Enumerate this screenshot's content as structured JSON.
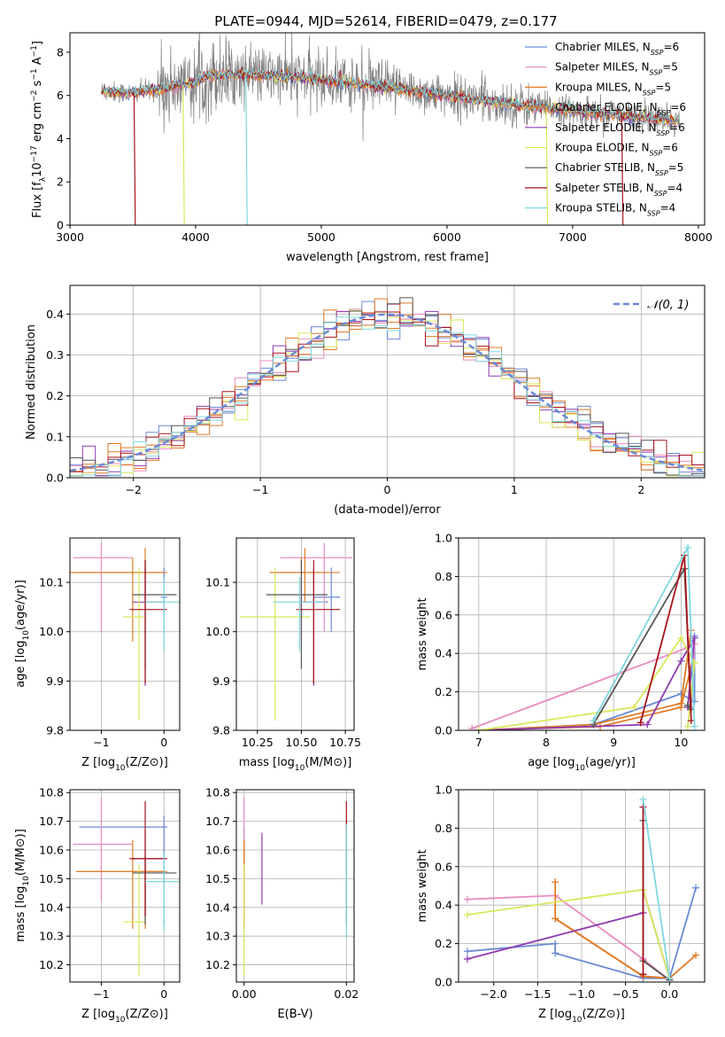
{
  "figure_title": "PLATE=0944, MJD=52614, FIBERID=0479, z=0.177",
  "colors": {
    "Chabrier MILES": "#6a8ad6",
    "Salpeter MILES": "#e88bbf",
    "Kroupa MILES": "#e07a25",
    "Chabrier ELODIE": "#e07a25",
    "Salpeter ELODIE": "#8e3bb0",
    "Kroupa ELODIE": "#d9e85a",
    "Chabrier STELIB": "#555555",
    "Salpeter STELIB": "#a8141c",
    "Kroupa STELIB": "#7fd8e0",
    "data": "#808080"
  },
  "chart_data": [
    {
      "id": "spectrum",
      "type": "line",
      "xlabel": "wavelength [Angstrom, rest frame]",
      "ylabel": "Flux [f_λ 10^-17 erg cm^-2 s^-1 A^-1]",
      "xlim": [
        3000,
        8050
      ],
      "ylim": [
        0,
        8.9
      ],
      "xticks": [
        3000,
        4000,
        5000,
        6000,
        7000,
        8000
      ],
      "yticks": [
        0,
        2,
        4,
        6,
        8
      ],
      "grid": false,
      "legend": "upper-right",
      "data_range": [
        3250,
        7850
      ],
      "profile": [
        [
          3250,
          6.2
        ],
        [
          3500,
          6.1
        ],
        [
          3700,
          6.3
        ],
        [
          3950,
          6.5
        ],
        [
          4100,
          6.9
        ],
        [
          4300,
          7.0
        ],
        [
          4600,
          6.9
        ],
        [
          4900,
          6.8
        ],
        [
          5200,
          6.6
        ],
        [
          5600,
          6.3
        ],
        [
          6000,
          6.0
        ],
        [
          6500,
          5.6
        ],
        [
          7000,
          5.3
        ],
        [
          7500,
          5.0
        ],
        [
          7850,
          4.8
        ]
      ],
      "legend_entries": [
        {
          "name": "Chabrier MILES",
          "label": "Chabrier MILES, N",
          "n": "=6"
        },
        {
          "name": "Salpeter MILES",
          "label": "Salpeter MILES, N",
          "n": "=5"
        },
        {
          "name": "Kroupa MILES",
          "label": "Kroupa MILES, N",
          "n": "=5"
        },
        {
          "name": "Chabrier ELODIE",
          "label": "Chabrier ELODIE, N",
          "n": "=6"
        },
        {
          "name": "Salpeter ELODIE",
          "label": "Salpeter ELODIE, N",
          "n": "=6"
        },
        {
          "name": "Kroupa ELODIE",
          "label": "Kroupa ELODIE, N",
          "n": "=6"
        },
        {
          "name": "Chabrier STELIB",
          "label": "Chabrier STELIB, N",
          "n": "=5"
        },
        {
          "name": "Salpeter STELIB",
          "label": "Salpeter STELIB, N",
          "n": "=4"
        },
        {
          "name": "Kroupa STELIB",
          "label": "Kroupa STELIB, N",
          "n": "=4"
        }
      ],
      "legend_subscript": "SSP",
      "drops": [
        {
          "model": "Salpeter STELIB",
          "x": 3520
        },
        {
          "model": "Kroupa ELODIE",
          "x": 3910
        },
        {
          "model": "Kroupa STELIB",
          "x": 4410
        },
        {
          "model": "Kroupa ELODIE",
          "x": 6800
        },
        {
          "model": "Salpeter STELIB",
          "x": 7400
        }
      ]
    },
    {
      "id": "residuals",
      "type": "step",
      "xlabel": "(data-model)/error",
      "ylabel": "Normed distribution",
      "xlim": [
        -2.5,
        2.5
      ],
      "ylim": [
        0,
        0.47
      ],
      "xticks": [
        -2,
        -1,
        0,
        1,
        2
      ],
      "yticks": [
        0.0,
        0.1,
        0.2,
        0.3,
        0.4
      ],
      "grid": true,
      "legend": "upper-right",
      "legend_label": "𝒩(0, 1)",
      "bin_width": 0.1
    },
    {
      "id": "age-vs-Z",
      "type": "errorbar",
      "xlabel": "Z [log10(Z/Z⊙)]",
      "ylabel": "age  [log10(age/yr)]",
      "xlim": [
        -1.5,
        0.25
      ],
      "ylim": [
        9.8,
        10.19
      ],
      "xticks": [
        -1,
        0
      ],
      "yticks": [
        9.8,
        9.9,
        10.0,
        10.1
      ],
      "grid": true,
      "points": [
        {
          "model": "Chabrier MILES",
          "x": 0.0,
          "y": 10.07,
          "xerr": [
            0.05,
            0.05
          ],
          "yerr": [
            0.07,
            0.06
          ]
        },
        {
          "model": "Salpeter MILES",
          "x": -1.0,
          "y": 10.15,
          "xerr": [
            0.45,
            0.5
          ],
          "yerr": [
            0.15,
            0.03
          ]
        },
        {
          "model": "Kroupa MILES",
          "x": -0.3,
          "y": 10.12,
          "xerr": [
            1.2,
            0.35
          ],
          "yerr": [
            0.06,
            0.05
          ]
        },
        {
          "model": "Chabrier ELODIE",
          "x": -0.5,
          "y": 10.12,
          "xerr": [
            0.9,
            0.5
          ],
          "yerr": [
            0.14,
            0.03
          ]
        },
        {
          "model": "Salpeter ELODIE",
          "x": -0.3,
          "y": 10.06,
          "xerr": [
            0.2,
            0.3
          ],
          "yerr": [
            0.17,
            0.07
          ]
        },
        {
          "model": "Kroupa ELODIE",
          "x": -0.4,
          "y": 10.03,
          "xerr": [
            0.25,
            0.1
          ],
          "yerr": [
            0.21,
            0.1
          ]
        },
        {
          "model": "Chabrier STELIB",
          "x": -0.3,
          "y": 10.075,
          "xerr": [
            0.2,
            0.5
          ],
          "yerr": [
            0.15,
            0.07
          ]
        },
        {
          "model": "Salpeter STELIB",
          "x": -0.3,
          "y": 10.045,
          "xerr": [
            0.25,
            0.35
          ],
          "yerr": [
            0.15,
            0.1
          ]
        },
        {
          "model": "Kroupa STELIB",
          "x": 0.0,
          "y": 10.06,
          "xerr": [
            0.3,
            0.25
          ],
          "yerr": [
            0.1,
            0.05
          ]
        }
      ]
    },
    {
      "id": "age-vs-mass",
      "type": "errorbar",
      "xlabel": "mass [log10(M/M⊙)]",
      "ylabel": "",
      "xlim": [
        10.13,
        10.8
      ],
      "ylim": [
        9.8,
        10.19
      ],
      "xticks": [
        10.25,
        10.5,
        10.75
      ],
      "yticks": [
        9.8,
        9.9,
        10.0,
        10.1
      ],
      "grid": true,
      "points": [
        {
          "model": "Chabrier MILES",
          "x": 10.67,
          "y": 10.07,
          "xerr": [
            0.1,
            0.05
          ],
          "yerr": [
            0.07,
            0.06
          ]
        },
        {
          "model": "Salpeter MILES",
          "x": 10.63,
          "y": 10.15,
          "xerr": [
            0.25,
            0.16
          ],
          "yerr": [
            0.15,
            0.03
          ]
        },
        {
          "model": "Kroupa MILES",
          "x": 10.52,
          "y": 10.12,
          "xerr": [
            0.2,
            0.2
          ],
          "yerr": [
            0.06,
            0.05
          ]
        },
        {
          "model": "Chabrier ELODIE",
          "x": 10.5,
          "y": 10.12,
          "xerr": [
            0.18,
            0.1
          ],
          "yerr": [
            0.14,
            0.03
          ]
        },
        {
          "model": "Salpeter ELODIE",
          "x": 10.57,
          "y": 10.06,
          "xerr": [
            0.08,
            0.08
          ],
          "yerr": [
            0.17,
            0.07
          ]
        },
        {
          "model": "Kroupa ELODIE",
          "x": 10.35,
          "y": 10.03,
          "xerr": [
            0.2,
            0.2
          ],
          "yerr": [
            0.21,
            0.1
          ]
        },
        {
          "model": "Chabrier STELIB",
          "x": 10.5,
          "y": 10.075,
          "xerr": [
            0.2,
            0.15
          ],
          "yerr": [
            0.15,
            0.07
          ]
        },
        {
          "model": "Salpeter STELIB",
          "x": 10.57,
          "y": 10.045,
          "xerr": [
            0.1,
            0.15
          ],
          "yerr": [
            0.15,
            0.1
          ]
        },
        {
          "model": "Kroupa STELIB",
          "x": 10.49,
          "y": 10.06,
          "xerr": [
            0.15,
            0.15
          ],
          "yerr": [
            0.1,
            0.05
          ]
        }
      ]
    },
    {
      "id": "massweight-vs-age",
      "type": "line",
      "xlabel": "age  [log10(age/yr)]",
      "ylabel": "mass weight",
      "xlim": [
        6.7,
        10.35
      ],
      "ylim": [
        0,
        1
      ],
      "xticks": [
        7,
        8,
        9,
        10
      ],
      "yticks": [
        0.0,
        0.2,
        0.4,
        0.6,
        0.8,
        1.0
      ],
      "grid": true,
      "series": [
        {
          "model": "Chabrier MILES",
          "x": [
            7.0,
            8.7,
            10.0,
            10.2,
            10.2,
            10.1
          ],
          "y": [
            0.0,
            0.03,
            0.19,
            0.15,
            0.49,
            0.13
          ]
        },
        {
          "model": "Salpeter MILES",
          "x": [
            6.9,
            10.1,
            10.2,
            10.15
          ],
          "y": [
            0.01,
            0.43,
            0.45,
            0.12
          ]
        },
        {
          "model": "Kroupa MILES",
          "x": [
            7.0,
            8.7,
            10.0,
            10.15
          ],
          "y": [
            0.0,
            0.03,
            0.14,
            0.52
          ]
        },
        {
          "model": "Chabrier ELODIE",
          "x": [
            7.0,
            8.8,
            10.0,
            10.15
          ],
          "y": [
            0.0,
            0.02,
            0.12,
            0.33
          ]
        },
        {
          "model": "Salpeter ELODIE",
          "x": [
            7.0,
            9.5,
            10.0,
            10.2,
            10.1
          ],
          "y": [
            0.0,
            0.03,
            0.36,
            0.48,
            0.12
          ]
        },
        {
          "model": "Kroupa ELODIE",
          "x": [
            7.0,
            9.3,
            10.0,
            10.2,
            10.1
          ],
          "y": [
            0.0,
            0.12,
            0.48,
            0.35,
            0.02
          ]
        },
        {
          "model": "Chabrier STELIB",
          "x": [
            8.7,
            10.05,
            10.15,
            10.1
          ],
          "y": [
            0.03,
            0.84,
            0.11,
            0.13
          ]
        },
        {
          "model": "Salpeter STELIB",
          "x": [
            9.4,
            10.05,
            10.15
          ],
          "y": [
            0.04,
            0.91,
            0.05
          ]
        },
        {
          "model": "Kroupa STELIB",
          "x": [
            8.7,
            10.1,
            10.2
          ],
          "y": [
            0.05,
            0.95,
            0.02
          ]
        }
      ]
    },
    {
      "id": "mass-vs-Z",
      "type": "errorbar",
      "xlabel": "Z [log10(Z/Z⊙)]",
      "ylabel": "mass [log10(M/M⊙)]",
      "xlim": [
        -1.5,
        0.25
      ],
      "ylim": [
        10.14,
        10.81
      ],
      "xticks": [
        -1,
        0
      ],
      "yticks": [
        10.2,
        10.3,
        10.4,
        10.5,
        10.6,
        10.7,
        10.8
      ],
      "grid": true,
      "points": [
        {
          "model": "Chabrier MILES",
          "x": 0.0,
          "y": 10.68,
          "xerr": [
            1.35,
            0.05
          ],
          "yerr": [
            0.34,
            0.04
          ]
        },
        {
          "model": "Salpeter MILES",
          "x": -1.0,
          "y": 10.62,
          "xerr": [
            0.45,
            0.5
          ],
          "yerr": [
            0.2,
            0.16
          ]
        },
        {
          "model": "Kroupa MILES",
          "x": -0.3,
          "y": 10.525,
          "xerr": [
            1.1,
            0.35
          ],
          "yerr": [
            0.2,
            0.05
          ]
        },
        {
          "model": "Chabrier ELODIE",
          "x": -0.5,
          "y": 10.525,
          "xerr": [
            0.9,
            0.5
          ],
          "yerr": [
            0.2,
            0.11
          ]
        },
        {
          "model": "Salpeter ELODIE",
          "x": -0.3,
          "y": 10.57,
          "xerr": [
            0.2,
            0.3
          ],
          "yerr": [
            0.2,
            0.1
          ]
        },
        {
          "model": "Kroupa ELODIE",
          "x": -0.4,
          "y": 10.35,
          "xerr": [
            0.25,
            0.1
          ],
          "yerr": [
            0.19,
            0.2
          ]
        },
        {
          "model": "Chabrier STELIB",
          "x": -0.3,
          "y": 10.52,
          "xerr": [
            0.2,
            0.5
          ],
          "yerr": [
            0.18,
            0.06
          ]
        },
        {
          "model": "Salpeter STELIB",
          "x": -0.3,
          "y": 10.57,
          "xerr": [
            0.25,
            0.35
          ],
          "yerr": [
            0.2,
            0.2
          ]
        },
        {
          "model": "Kroupa STELIB",
          "x": 0.0,
          "y": 10.49,
          "xerr": [
            0.3,
            0.25
          ],
          "yerr": [
            0.17,
            0.1
          ]
        }
      ]
    },
    {
      "id": "mass-vs-EBV",
      "type": "errorbar",
      "xlabel": "E(B-V)",
      "ylabel": "",
      "xlim": [
        -0.0015,
        0.0215
      ],
      "ylim": [
        10.14,
        10.81
      ],
      "xticks": [
        0.0,
        0.02
      ],
      "xtick_labels": [
        "0.00",
        "0.02"
      ],
      "yticks": [
        10.2,
        10.3,
        10.4,
        10.5,
        10.6,
        10.7,
        10.8
      ],
      "grid": true,
      "points": [
        {
          "model": "Chabrier MILES",
          "x": 0.0,
          "y": 10.48,
          "yerr": [
            0.12,
            0.2
          ]
        },
        {
          "model": "Salpeter MILES",
          "x": 0.0,
          "y": 10.62,
          "yerr": [
            0.2,
            0.16
          ]
        },
        {
          "model": "Kroupa MILES",
          "x": 0.0,
          "y": 10.525,
          "yerr": [
            0.2,
            0.11
          ]
        },
        {
          "model": "Chabrier ELODIE",
          "x": 0.0,
          "y": 10.525,
          "yerr": [
            0.2,
            0.11
          ]
        },
        {
          "model": "Salpeter ELODIE",
          "x": 0.0035,
          "y": 10.53,
          "yerr": [
            0.12,
            0.13
          ]
        },
        {
          "model": "Kroupa ELODIE",
          "x": 0.0,
          "y": 10.35,
          "yerr": [
            0.19,
            0.2
          ]
        },
        {
          "model": "Chabrier STELIB",
          "x": 0.02,
          "y": 10.52,
          "yerr": [
            0.18,
            0.18
          ]
        },
        {
          "model": "Salpeter STELIB",
          "x": 0.02,
          "y": 10.72,
          "yerr": [
            0.05,
            0.05
          ]
        },
        {
          "model": "Kroupa STELIB",
          "x": 0.02,
          "y": 10.49,
          "yerr": [
            0.2,
            0.2
          ]
        }
      ]
    },
    {
      "id": "massweight-vs-Z",
      "type": "line",
      "xlabel": "Z [log10(Z/Z⊙)]",
      "ylabel": "mass weight",
      "xlim": [
        -2.4,
        0.4
      ],
      "ylim": [
        0,
        1
      ],
      "xticks": [
        -2.0,
        -1.5,
        -1.0,
        -0.5,
        0.0
      ],
      "yticks": [
        0.0,
        0.2,
        0.4,
        0.6,
        0.8,
        1.0
      ],
      "grid": true,
      "series": [
        {
          "model": "Chabrier MILES",
          "x": [
            -2.3,
            -1.3,
            -1.3,
            -0.3,
            0.0,
            0.3
          ],
          "y": [
            0.16,
            0.2,
            0.15,
            0.02,
            0.02,
            0.49
          ]
        },
        {
          "model": "Salpeter MILES",
          "x": [
            -2.3,
            -1.3,
            -0.3,
            0.0,
            -0.3
          ],
          "y": [
            0.43,
            0.45,
            0.12,
            0.01,
            0.12
          ]
        },
        {
          "model": "Kroupa MILES",
          "x": [
            -1.3,
            -1.3,
            -0.3,
            0.0,
            0.3
          ],
          "y": [
            0.52,
            0.33,
            0.03,
            0.02,
            0.14
          ]
        },
        {
          "model": "Chabrier ELODIE",
          "x": [
            -1.3,
            -0.3,
            0.0
          ],
          "y": [
            0.33,
            0.03,
            0.02
          ]
        },
        {
          "model": "Salpeter ELODIE",
          "x": [
            -2.3,
            -0.3,
            -0.3,
            0.0
          ],
          "y": [
            0.12,
            0.36,
            0.48,
            0.02
          ]
        },
        {
          "model": "Kroupa ELODIE",
          "x": [
            -2.3,
            -0.3,
            0.0
          ],
          "y": [
            0.35,
            0.48,
            0.02
          ]
        },
        {
          "model": "Chabrier STELIB",
          "x": [
            -0.3,
            -0.3,
            0.0
          ],
          "y": [
            0.84,
            0.11,
            0.01
          ]
        },
        {
          "model": "Salpeter STELIB",
          "x": [
            -0.3,
            -0.3
          ],
          "y": [
            0.91,
            0.04
          ]
        },
        {
          "model": "Kroupa STELIB",
          "x": [
            -0.3,
            0.0
          ],
          "y": [
            0.95,
            0.02
          ]
        }
      ]
    }
  ]
}
